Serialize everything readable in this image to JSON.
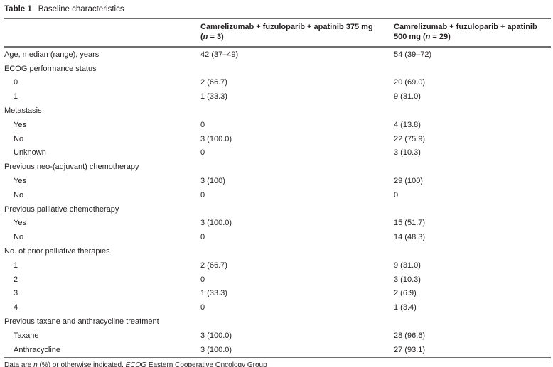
{
  "title": {
    "label": "Table 1",
    "text": "Baseline characteristics"
  },
  "header": {
    "col1": {
      "name": "Camrelizumab + fuzuloparib + apatinib 375 mg",
      "paren_open": "(",
      "n": "n",
      "rest": " = 3)"
    },
    "col2": {
      "name": "Camrelizumab + fuzuloparib + apatinib",
      "line2_prefix": "500 mg (",
      "n": "n",
      "rest": " = 29)"
    }
  },
  "rows": [
    {
      "label": "Age, median (range), years",
      "indent": false,
      "col1": "42 (37–49)",
      "col2": "54 (39–72)"
    },
    {
      "label": "ECOG performance status",
      "indent": false,
      "col1": "",
      "col2": ""
    },
    {
      "label": "0",
      "indent": true,
      "col1": "2 (66.7)",
      "col2": "20 (69.0)"
    },
    {
      "label": "1",
      "indent": true,
      "col1": "1 (33.3)",
      "col2": "9 (31.0)"
    },
    {
      "label": "Metastasis",
      "indent": false,
      "col1": "",
      "col2": ""
    },
    {
      "label": "Yes",
      "indent": true,
      "col1": "0",
      "col2": "4 (13.8)"
    },
    {
      "label": "No",
      "indent": true,
      "col1": "3 (100.0)",
      "col2": "22 (75.9)"
    },
    {
      "label": "Unknown",
      "indent": true,
      "col1": "0",
      "col2": "3 (10.3)"
    },
    {
      "label": "Previous neo-(adjuvant) chemotherapy",
      "indent": false,
      "col1": "",
      "col2": ""
    },
    {
      "label": "Yes",
      "indent": true,
      "col1": "3 (100)",
      "col2": "29 (100)"
    },
    {
      "label": "No",
      "indent": true,
      "col1": "0",
      "col2": "0"
    },
    {
      "label": "Previous palliative chemotherapy",
      "indent": false,
      "col1": "",
      "col2": ""
    },
    {
      "label": "Yes",
      "indent": true,
      "col1": "3 (100.0)",
      "col2": "15 (51.7)"
    },
    {
      "label": "No",
      "indent": true,
      "col1": "0",
      "col2": "14 (48.3)"
    },
    {
      "label": "No. of prior palliative therapies",
      "indent": false,
      "col1": "",
      "col2": ""
    },
    {
      "label": "1",
      "indent": true,
      "col1": "2 (66.7)",
      "col2": "9 (31.0)"
    },
    {
      "label": "2",
      "indent": true,
      "col1": "0",
      "col2": "3 (10.3)"
    },
    {
      "label": "3",
      "indent": true,
      "col1": "1 (33.3)",
      "col2": "2 (6.9)"
    },
    {
      "label": "4",
      "indent": true,
      "col1": "0",
      "col2": "1 (3.4)"
    },
    {
      "label": "Previous taxane and anthracycline treatment",
      "indent": false,
      "col1": "",
      "col2": ""
    },
    {
      "label": "Taxane",
      "indent": true,
      "col1": "3 (100.0)",
      "col2": "28 (96.6)"
    },
    {
      "label": "Anthracycline",
      "indent": true,
      "col1": "3 (100.0)",
      "col2": "27 (93.1)"
    }
  ],
  "footer": {
    "pre": "Data are ",
    "n": "n",
    "mid": " (%) or otherwise indicated. ",
    "ecog": "ECOG",
    "post": " Eastern Cooperative Oncology Group"
  },
  "colors": {
    "text": "#231f20",
    "rule": "#6d6e70",
    "background": "#ffffff"
  }
}
